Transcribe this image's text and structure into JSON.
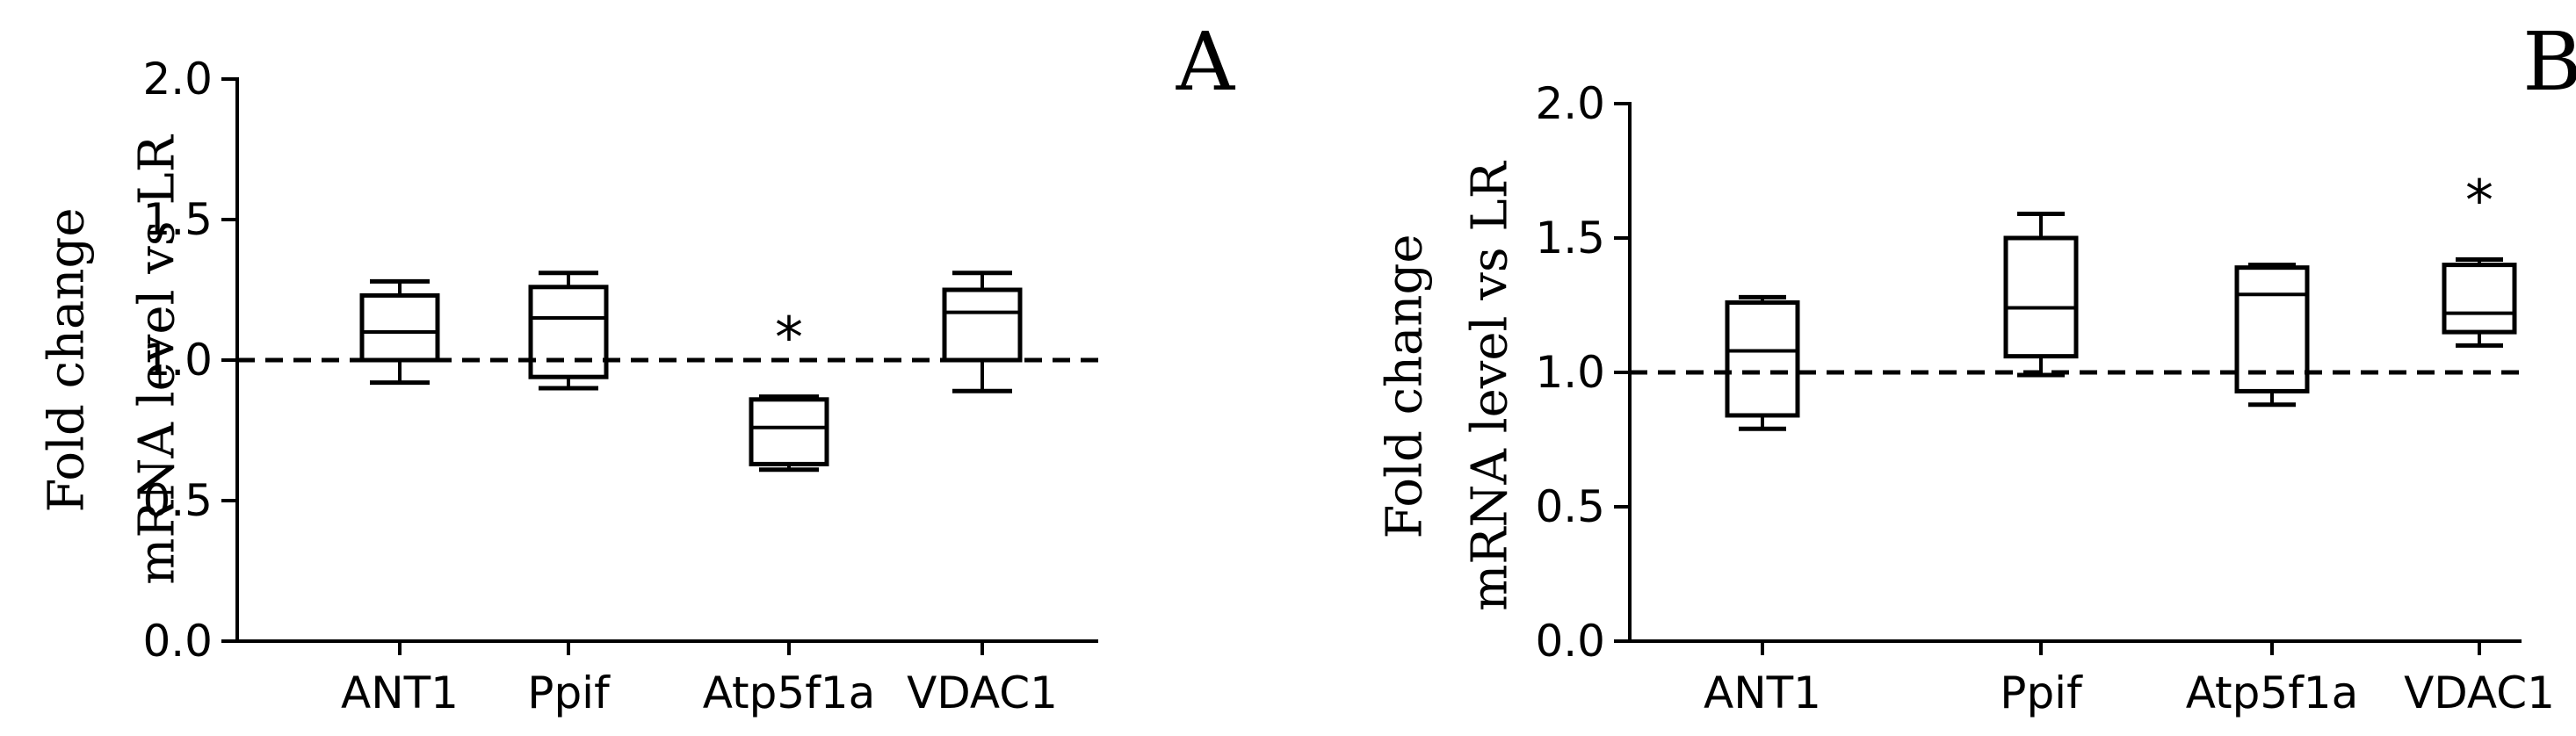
{
  "colors": {
    "ink": "#000000",
    "background": "#ffffff"
  },
  "chart_data": [
    {
      "type": "box",
      "panel_label": "A",
      "ylabel_lines": [
        "Fold change",
        "mRNA level vs LR"
      ],
      "ylim": [
        0,
        2.0
      ],
      "y_ticks": [
        "0.0",
        "0.5",
        "1.0",
        "1.5",
        "2.0"
      ],
      "reference_line": 1.0,
      "categories": [
        "ANT1",
        "Ppif",
        "Atp5f1a",
        "VDAC1"
      ],
      "boxes": [
        {
          "min": 0.92,
          "q1": 1.0,
          "median": 1.1,
          "q3": 1.23,
          "max": 1.28
        },
        {
          "min": 0.9,
          "q1": 0.94,
          "median": 1.15,
          "q3": 1.26,
          "max": 1.31
        },
        {
          "min": 0.61,
          "q1": 0.63,
          "median": 0.76,
          "q3": 0.86,
          "max": 0.87
        },
        {
          "min": 0.89,
          "q1": 1.0,
          "median": 1.17,
          "q3": 1.25,
          "max": 1.31
        }
      ],
      "significance_marks": [
        {
          "category": "Atp5f1a",
          "text": "*"
        }
      ]
    },
    {
      "type": "box",
      "panel_label": "B",
      "ylabel_lines": [
        "Fold change",
        "mRNA level vs LR"
      ],
      "ylim": [
        0,
        2.0
      ],
      "y_ticks": [
        "0.0",
        "0.5",
        "1.0",
        "1.5",
        "2.0"
      ],
      "reference_line": 1.0,
      "categories": [
        "ANT1",
        "Ppif",
        "Atp5f1a",
        "VDAC1"
      ],
      "boxes": [
        {
          "min": 0.79,
          "q1": 0.84,
          "median": 1.08,
          "q3": 1.26,
          "max": 1.28
        },
        {
          "min": 0.99,
          "q1": 1.06,
          "median": 1.24,
          "q3": 1.5,
          "max": 1.59
        },
        {
          "min": 0.88,
          "q1": 0.93,
          "median": 1.29,
          "q3": 1.39,
          "max": 1.4
        },
        {
          "min": 1.1,
          "q1": 1.15,
          "median": 1.22,
          "q3": 1.4,
          "max": 1.42
        }
      ],
      "significance_marks": [
        {
          "category": "VDAC1",
          "text": "*"
        }
      ]
    }
  ]
}
